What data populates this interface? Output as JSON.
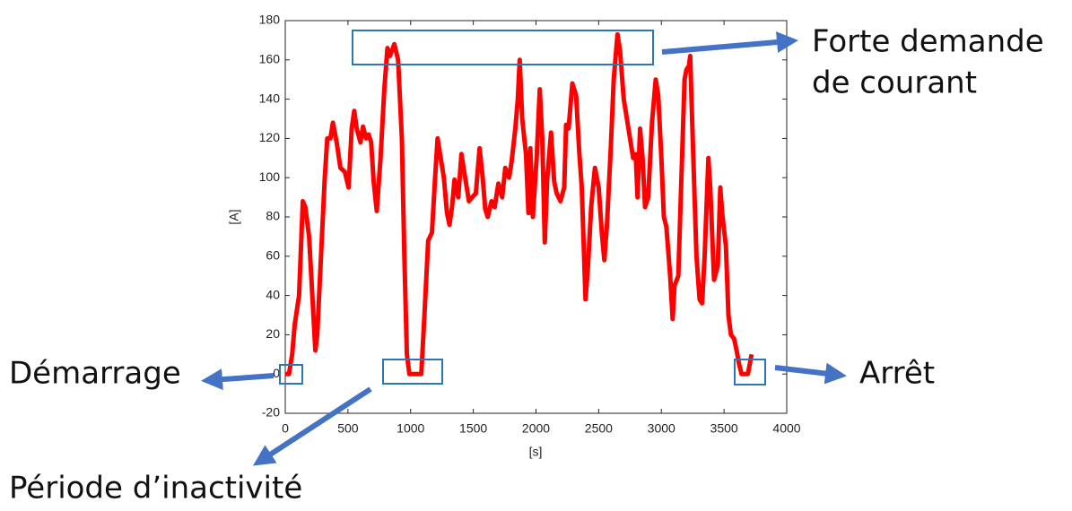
{
  "chart_data": {
    "type": "line",
    "ylabel": "[A]",
    "xlabel": "[s]",
    "x": [
      0,
      30,
      55,
      75,
      110,
      140,
      160,
      190,
      220,
      240,
      255,
      285,
      315,
      335,
      360,
      380,
      410,
      440,
      475,
      505,
      530,
      550,
      570,
      600,
      620,
      645,
      665,
      685,
      705,
      730,
      760,
      790,
      815,
      835,
      870,
      900,
      930,
      950,
      970,
      990,
      1045,
      1085,
      1110,
      1140,
      1170,
      1195,
      1215,
      1235,
      1265,
      1290,
      1310,
      1330,
      1350,
      1380,
      1405,
      1435,
      1465,
      1490,
      1520,
      1550,
      1575,
      1595,
      1615,
      1645,
      1670,
      1700,
      1730,
      1755,
      1785,
      1805,
      1835,
      1855,
      1870,
      1890,
      1920,
      1940,
      1955,
      1975,
      2005,
      2030,
      2050,
      2070,
      2090,
      2120,
      2145,
      2165,
      2195,
      2225,
      2240,
      2260,
      2290,
      2320,
      2345,
      2365,
      2395,
      2415,
      2440,
      2470,
      2500,
      2525,
      2545,
      2565,
      2595,
      2620,
      2650,
      2670,
      2700,
      2725,
      2755,
      2775,
      2795,
      2810,
      2830,
      2850,
      2870,
      2895,
      2925,
      2955,
      2975,
      3000,
      3020,
      3040,
      3070,
      3090,
      3105,
      3135,
      3165,
      3185,
      3200,
      3220,
      3230,
      3250,
      3280,
      3305,
      3325,
      3345,
      3375,
      3390,
      3420,
      3450,
      3470,
      3485,
      3515,
      3535,
      3555,
      3580,
      3600,
      3620,
      3640,
      3660,
      3690,
      3705,
      3720
    ],
    "series": [
      {
        "color": "#ff0000",
        "values": [
          0,
          0,
          10,
          25,
          40,
          88,
          85,
          70,
          35,
          12,
          20,
          60,
          100,
          120,
          120,
          128,
          118,
          105,
          103,
          95,
          125,
          134,
          125,
          118,
          126,
          120,
          122,
          118,
          98,
          83,
          110,
          145,
          166,
          162,
          168,
          160,
          120,
          60,
          10,
          0,
          0,
          0,
          30,
          68,
          72,
          100,
          120,
          112,
          100,
          82,
          76,
          85,
          99,
          90,
          112,
          100,
          88,
          90,
          92,
          115,
          100,
          84,
          80,
          88,
          85,
          97,
          90,
          105,
          100,
          108,
          125,
          140,
          160,
          130,
          112,
          82,
          115,
          80,
          110,
          145,
          120,
          67,
          100,
          123,
          98,
          92,
          88,
          95,
          127,
          125,
          148,
          142,
          113,
          95,
          38,
          55,
          85,
          105,
          95,
          72,
          58,
          75,
          113,
          150,
          173,
          165,
          140,
          130,
          118,
          110,
          112,
          90,
          125,
          110,
          85,
          90,
          128,
          150,
          142,
          110,
          80,
          75,
          50,
          28,
          45,
          50,
          110,
          150,
          155,
          157,
          162,
          120,
          60,
          38,
          36,
          60,
          110,
          95,
          48,
          55,
          95,
          82,
          65,
          30,
          20,
          18,
          12,
          5,
          0,
          0,
          0,
          5,
          10
        ]
      }
    ],
    "xlim": [
      0,
      4000
    ],
    "xticks": [
      0,
      500,
      1000,
      1500,
      2000,
      2500,
      3000,
      3500,
      4000
    ],
    "ylim": [
      -20,
      180
    ],
    "yticks": [
      -20,
      0,
      20,
      40,
      60,
      80,
      100,
      120,
      140,
      160,
      180
    ],
    "annotations": [
      "Forte demande",
      "de courant",
      "Démarrage",
      "Arrêt",
      "Période d’inactivité"
    ]
  }
}
